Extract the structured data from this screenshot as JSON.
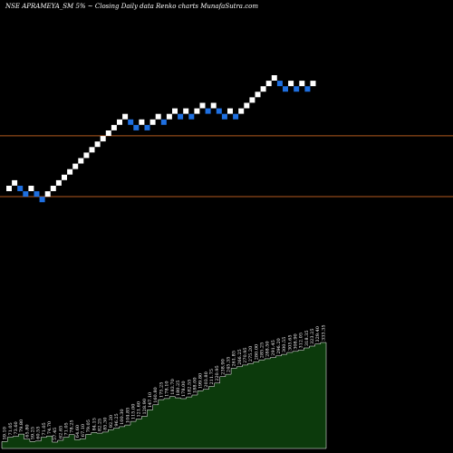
{
  "header": {
    "title": "NSE APRAMEYA_SM 5% ~  Closing Daily data  Renko  charts MunafaSutra.com"
  },
  "colors": {
    "background": "#000000",
    "up_brick": "#ffffff",
    "down_brick": "#1e6fe0",
    "reference_line": "#b35a1f",
    "volume_fill": "#0c3a0c",
    "volume_stroke": "#ffffff"
  },
  "chart_data": [
    {
      "type": "renko",
      "bricks": [
        {
          "dir": "up",
          "level": 0
        },
        {
          "dir": "up",
          "level": 1
        },
        {
          "dir": "down",
          "level": 0
        },
        {
          "dir": "down",
          "level": -1
        },
        {
          "dir": "up",
          "level": 0
        },
        {
          "dir": "down",
          "level": -1
        },
        {
          "dir": "down",
          "level": -2
        },
        {
          "dir": "up",
          "level": -1
        },
        {
          "dir": "up",
          "level": 0
        },
        {
          "dir": "up",
          "level": 1
        },
        {
          "dir": "up",
          "level": 2
        },
        {
          "dir": "up",
          "level": 3
        },
        {
          "dir": "up",
          "level": 4
        },
        {
          "dir": "up",
          "level": 5
        },
        {
          "dir": "up",
          "level": 6
        },
        {
          "dir": "up",
          "level": 7
        },
        {
          "dir": "up",
          "level": 8
        },
        {
          "dir": "up",
          "level": 9
        },
        {
          "dir": "up",
          "level": 10
        },
        {
          "dir": "up",
          "level": 11
        },
        {
          "dir": "up",
          "level": 12
        },
        {
          "dir": "up",
          "level": 13
        },
        {
          "dir": "down",
          "level": 12
        },
        {
          "dir": "down",
          "level": 11
        },
        {
          "dir": "up",
          "level": 12
        },
        {
          "dir": "down",
          "level": 11
        },
        {
          "dir": "up",
          "level": 12
        },
        {
          "dir": "up",
          "level": 13
        },
        {
          "dir": "down",
          "level": 12
        },
        {
          "dir": "up",
          "level": 13
        },
        {
          "dir": "up",
          "level": 14
        },
        {
          "dir": "down",
          "level": 13
        },
        {
          "dir": "up",
          "level": 14
        },
        {
          "dir": "down",
          "level": 13
        },
        {
          "dir": "up",
          "level": 14
        },
        {
          "dir": "up",
          "level": 15
        },
        {
          "dir": "down",
          "level": 14
        },
        {
          "dir": "up",
          "level": 15
        },
        {
          "dir": "down",
          "level": 14
        },
        {
          "dir": "down",
          "level": 13
        },
        {
          "dir": "up",
          "level": 14
        },
        {
          "dir": "down",
          "level": 13
        },
        {
          "dir": "up",
          "level": 14
        },
        {
          "dir": "up",
          "level": 15
        },
        {
          "dir": "up",
          "level": 16
        },
        {
          "dir": "up",
          "level": 17
        },
        {
          "dir": "up",
          "level": 18
        },
        {
          "dir": "up",
          "level": 19
        },
        {
          "dir": "up",
          "level": 20
        },
        {
          "dir": "down",
          "level": 19
        },
        {
          "dir": "down",
          "level": 18
        },
        {
          "dir": "up",
          "level": 19
        },
        {
          "dir": "down",
          "level": 18
        },
        {
          "dir": "up",
          "level": 19
        },
        {
          "dir": "down",
          "level": 18
        },
        {
          "dir": "up",
          "level": 19
        }
      ],
      "reference_levels": [
        11,
        0
      ]
    },
    {
      "type": "area",
      "labels": [
        "59.10",
        "71.05",
        "73.60",
        "79.80",
        "65.80",
        "59.25",
        "60.55",
        "71.05",
        "74.70",
        "57.45",
        "62.65",
        "71.05",
        "78.25",
        "64.60",
        "67.10",
        "79.05",
        "84.15",
        "82.25",
        "85.30",
        "92.20",
        "96.25",
        "100.30",
        "104.85",
        "115.00",
        "121.60",
        "128.90",
        "147.10",
        "160.80",
        "175.25",
        "178.10",
        "183.70",
        "180.25",
        "178.00",
        "182.55",
        "188.00",
        "199.80",
        "203.80",
        "211.75",
        "220.95",
        "238.90",
        "245.35",
        "261.85",
        "266.25",
        "270.95",
        "275.20",
        "280.00",
        "285.25",
        "288.50",
        "291.45",
        "296.20",
        "300.55",
        "305.65",
        "308.90",
        "312.05",
        "318.35",
        "323.25",
        "329.40",
        "333.35"
      ],
      "values": [
        59.1,
        71.05,
        73.6,
        79.8,
        65.8,
        59.25,
        60.55,
        71.05,
        74.7,
        57.45,
        62.65,
        71.05,
        78.25,
        64.6,
        67.1,
        79.05,
        84.15,
        82.25,
        85.3,
        92.2,
        96.25,
        100.3,
        104.85,
        115.0,
        121.6,
        128.9,
        147.1,
        160.8,
        175.25,
        178.1,
        183.7,
        180.25,
        178.0,
        182.55,
        188.0,
        199.8,
        203.8,
        211.75,
        220.95,
        238.9,
        245.35,
        261.85,
        266.25,
        270.95,
        275.2,
        280.0,
        285.25,
        288.5,
        291.45,
        296.2,
        300.55,
        305.65,
        308.9,
        312.05,
        318.35,
        323.25,
        329.4,
        333.35
      ]
    }
  ]
}
